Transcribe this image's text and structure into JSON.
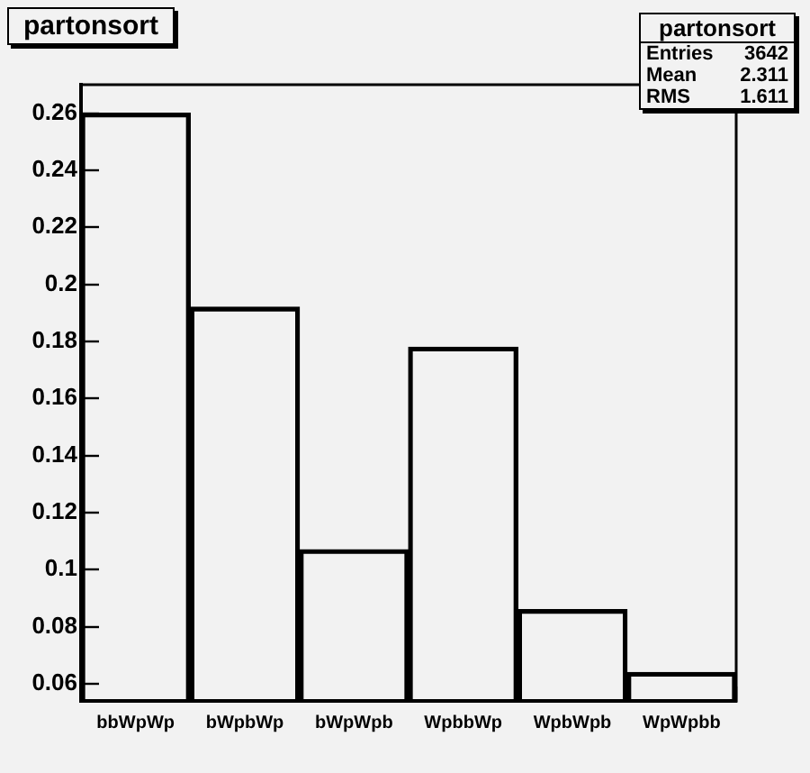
{
  "chart_data": {
    "type": "bar",
    "title": "partonsort",
    "categories": [
      "bbWpWp",
      "bWpbWp",
      "bWpWpb",
      "WpbbWp",
      "WpbWpb",
      "WpWpbb"
    ],
    "values": [
      0.26,
      0.192,
      0.107,
      0.178,
      0.086,
      0.064
    ],
    "color": "#000000",
    "ylim": [
      0.054,
      0.27
    ],
    "yticks": [
      0.06,
      0.08,
      0.1,
      0.12,
      0.14,
      0.16,
      0.18,
      0.2,
      0.22,
      0.24,
      0.26
    ],
    "grid": false,
    "annotations": [
      "partonsort",
      "Entries 3642",
      "Mean 2.311",
      "RMS 1.611"
    ]
  }
}
